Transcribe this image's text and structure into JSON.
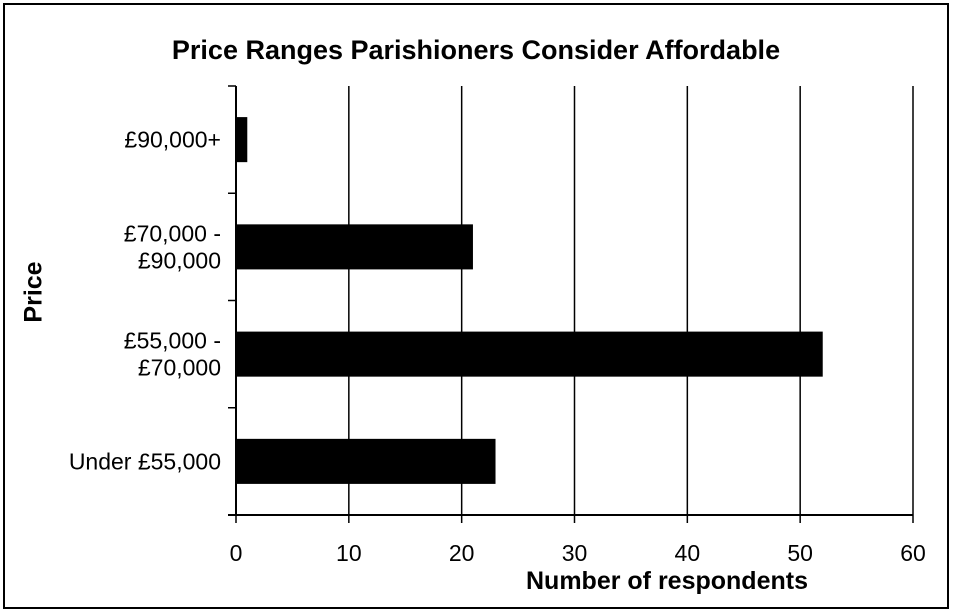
{
  "chart_data": {
    "type": "bar",
    "orientation": "horizontal",
    "title": "Price Ranges Parishioners Consider Affordable",
    "xlabel": "Number of respondents",
    "ylabel": "Price",
    "categories": [
      [
        "£90,000+"
      ],
      [
        "£70,000 -",
        "£90,000"
      ],
      [
        "£55,000 -",
        "£70,000"
      ],
      [
        "Under £55,000"
      ]
    ],
    "values": [
      1,
      21,
      52,
      23
    ],
    "xlim": [
      0,
      60
    ],
    "xticks": [
      "0",
      "10",
      "20",
      "30",
      "40",
      "50",
      "60"
    ],
    "grid": "vertical",
    "bar_color": "#000000"
  }
}
